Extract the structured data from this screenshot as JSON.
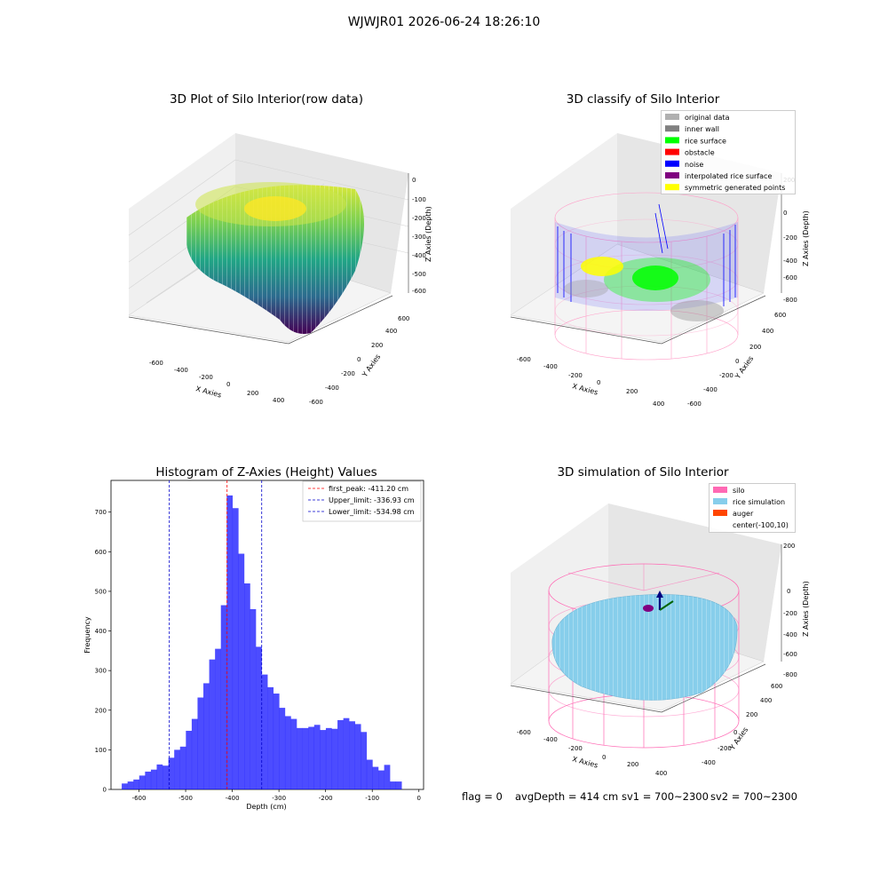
{
  "figure": {
    "suptitle": "WJWJR01 2026-06-24 18:26:10"
  },
  "status": {
    "flag": "flag = 0",
    "avg_depth": "avgDepth = 414 cm",
    "sv1": "sv1 = 700~2300",
    "sv2": "sv2 = 700~2300"
  },
  "chart_data": [
    {
      "type": "scatter",
      "title": "3D Plot of Silo Interior(row data)",
      "xlabel": "X Axies",
      "ylabel": "Y Axies",
      "zlabel": "Z Axies (Depth)",
      "x_ticks": [
        "-600",
        "-400",
        "-200",
        "0",
        "200",
        "400"
      ],
      "y_ticks": [
        "-600",
        "-400",
        "-200",
        "0",
        "200",
        "400",
        "600"
      ],
      "z_ticks": [
        "0",
        "-100",
        "-200",
        "-300",
        "-400",
        "-500",
        "-600"
      ],
      "colormap": "viridis"
    },
    {
      "type": "scatter",
      "title": "3D classify of Silo Interior",
      "xlabel": "X Axies",
      "ylabel": "Y Axies",
      "zlabel": "Z Axies (Depth)",
      "x_ticks": [
        "-600",
        "-400",
        "-200",
        "0",
        "200",
        "400"
      ],
      "y_ticks": [
        "-600",
        "-400",
        "-200",
        "0",
        "200",
        "400",
        "600"
      ],
      "z_ticks": [
        "200",
        "0",
        "-200",
        "-400",
        "-600",
        "-800"
      ],
      "legend": [
        {
          "label": "original data",
          "color": "#b0b0b0"
        },
        {
          "label": "inner wall",
          "color": "#808080"
        },
        {
          "label": "rice surface",
          "color": "#00ff00"
        },
        {
          "label": "obstacle",
          "color": "#ff0000"
        },
        {
          "label": "noise",
          "color": "#0000ff"
        },
        {
          "label": "interpolated rice surface",
          "color": "#800080"
        },
        {
          "label": "symmetric generated points",
          "color": "#ffff00"
        }
      ]
    },
    {
      "type": "bar",
      "title": "Histogram of Z-Axies (Height) Values",
      "xlabel": "Depth (cm)",
      "ylabel": "Frequency",
      "xlim": [
        -660,
        10
      ],
      "ylim": [
        0,
        780
      ],
      "x_ticks": [
        -600,
        -500,
        -400,
        -300,
        -200,
        -100,
        0
      ],
      "y_ticks": [
        0,
        100,
        200,
        300,
        400,
        500,
        600,
        700
      ],
      "bin_width": 12.5,
      "bin_start": -637,
      "values": [
        15,
        20,
        25,
        35,
        45,
        50,
        63,
        60,
        80,
        100,
        108,
        148,
        178,
        232,
        268,
        328,
        355,
        465,
        742,
        710,
        595,
        520,
        455,
        360,
        290,
        258,
        242,
        206,
        185,
        178,
        155,
        155,
        158,
        163,
        150,
        155,
        153,
        175,
        180,
        172,
        165,
        145,
        75,
        57,
        48,
        62,
        20,
        20
      ],
      "color": "#0000ff",
      "vlines": [
        {
          "x": -411.2,
          "label": "first_peak: -411.20 cm",
          "color": "#ff0000"
        },
        {
          "x": -336.93,
          "label": "Upper_limit: -336.93 cm",
          "color": "#0000cc"
        },
        {
          "x": -534.98,
          "label": "Lower_limit: -534.98 cm",
          "color": "#0000cc"
        }
      ],
      "legend_position": "top-right"
    },
    {
      "type": "surface",
      "title": "3D simulation of Silo Interior",
      "xlabel": "X Axies",
      "ylabel": "Y Axies",
      "zlabel": "Z Axies (Depth)",
      "x_ticks": [
        "-600",
        "-400",
        "-200",
        "0",
        "200",
        "400"
      ],
      "y_ticks": [
        "-400",
        "-200",
        "0",
        "200",
        "400",
        "600"
      ],
      "z_ticks": [
        "200",
        "0",
        "-200",
        "-400",
        "-600",
        "-800"
      ],
      "legend": [
        {
          "label": "silo",
          "color": "#ff69b4"
        },
        {
          "label": "rice simulation",
          "color": "#87ceeb"
        },
        {
          "label": "auger",
          "color": "#ff4500"
        },
        {
          "label": "center(-100,10)",
          "color": ""
        }
      ]
    }
  ]
}
